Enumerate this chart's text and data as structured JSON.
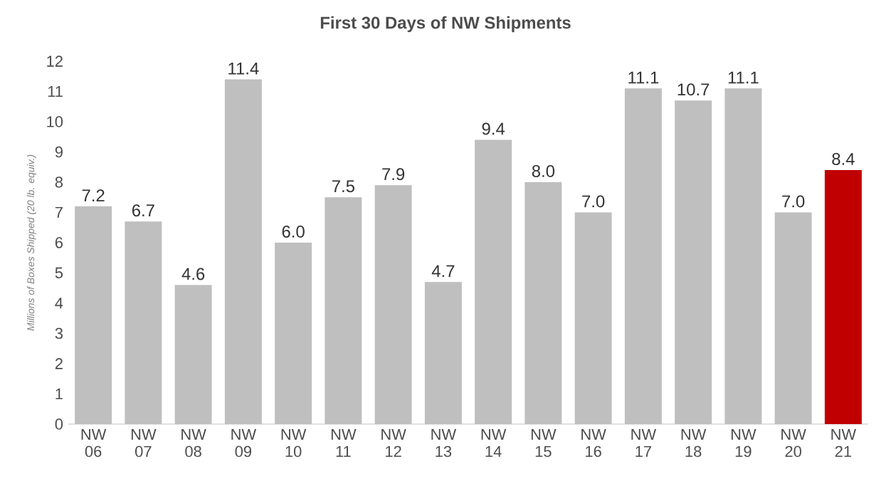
{
  "chart_data": {
    "type": "bar",
    "title": "First 30 Days of NW Shipments",
    "ylabel": "Millions of Boxes Shipped (20 lb. equiv.)",
    "categories": [
      "NW 06",
      "NW 07",
      "NW 08",
      "NW 09",
      "NW 10",
      "NW 11",
      "NW 12",
      "NW 13",
      "NW 14",
      "NW 15",
      "NW 16",
      "NW 17",
      "NW 18",
      "NW 19",
      "NW 20",
      "NW 21"
    ],
    "values": [
      7.2,
      6.7,
      4.6,
      11.4,
      6.0,
      7.5,
      7.9,
      4.7,
      9.4,
      8.0,
      7.0,
      11.1,
      10.7,
      11.1,
      7.0,
      8.4
    ],
    "colors": [
      "#bfbfbf",
      "#bfbfbf",
      "#bfbfbf",
      "#bfbfbf",
      "#bfbfbf",
      "#bfbfbf",
      "#bfbfbf",
      "#bfbfbf",
      "#bfbfbf",
      "#bfbfbf",
      "#bfbfbf",
      "#bfbfbf",
      "#bfbfbf",
      "#bfbfbf",
      "#bfbfbf",
      "#c00000"
    ],
    "value_labels": [
      "7.2",
      "6.7",
      "4.6",
      "11.4",
      "6.0",
      "7.5",
      "7.9",
      "4.7",
      "9.4",
      "8.0",
      "7.0",
      "11.1",
      "10.7",
      "11.1",
      "7.0",
      "8.4"
    ],
    "ylim": [
      0,
      12
    ],
    "yticks": [
      0,
      1,
      2,
      3,
      4,
      5,
      6,
      7,
      8,
      9,
      10,
      11,
      12
    ]
  }
}
